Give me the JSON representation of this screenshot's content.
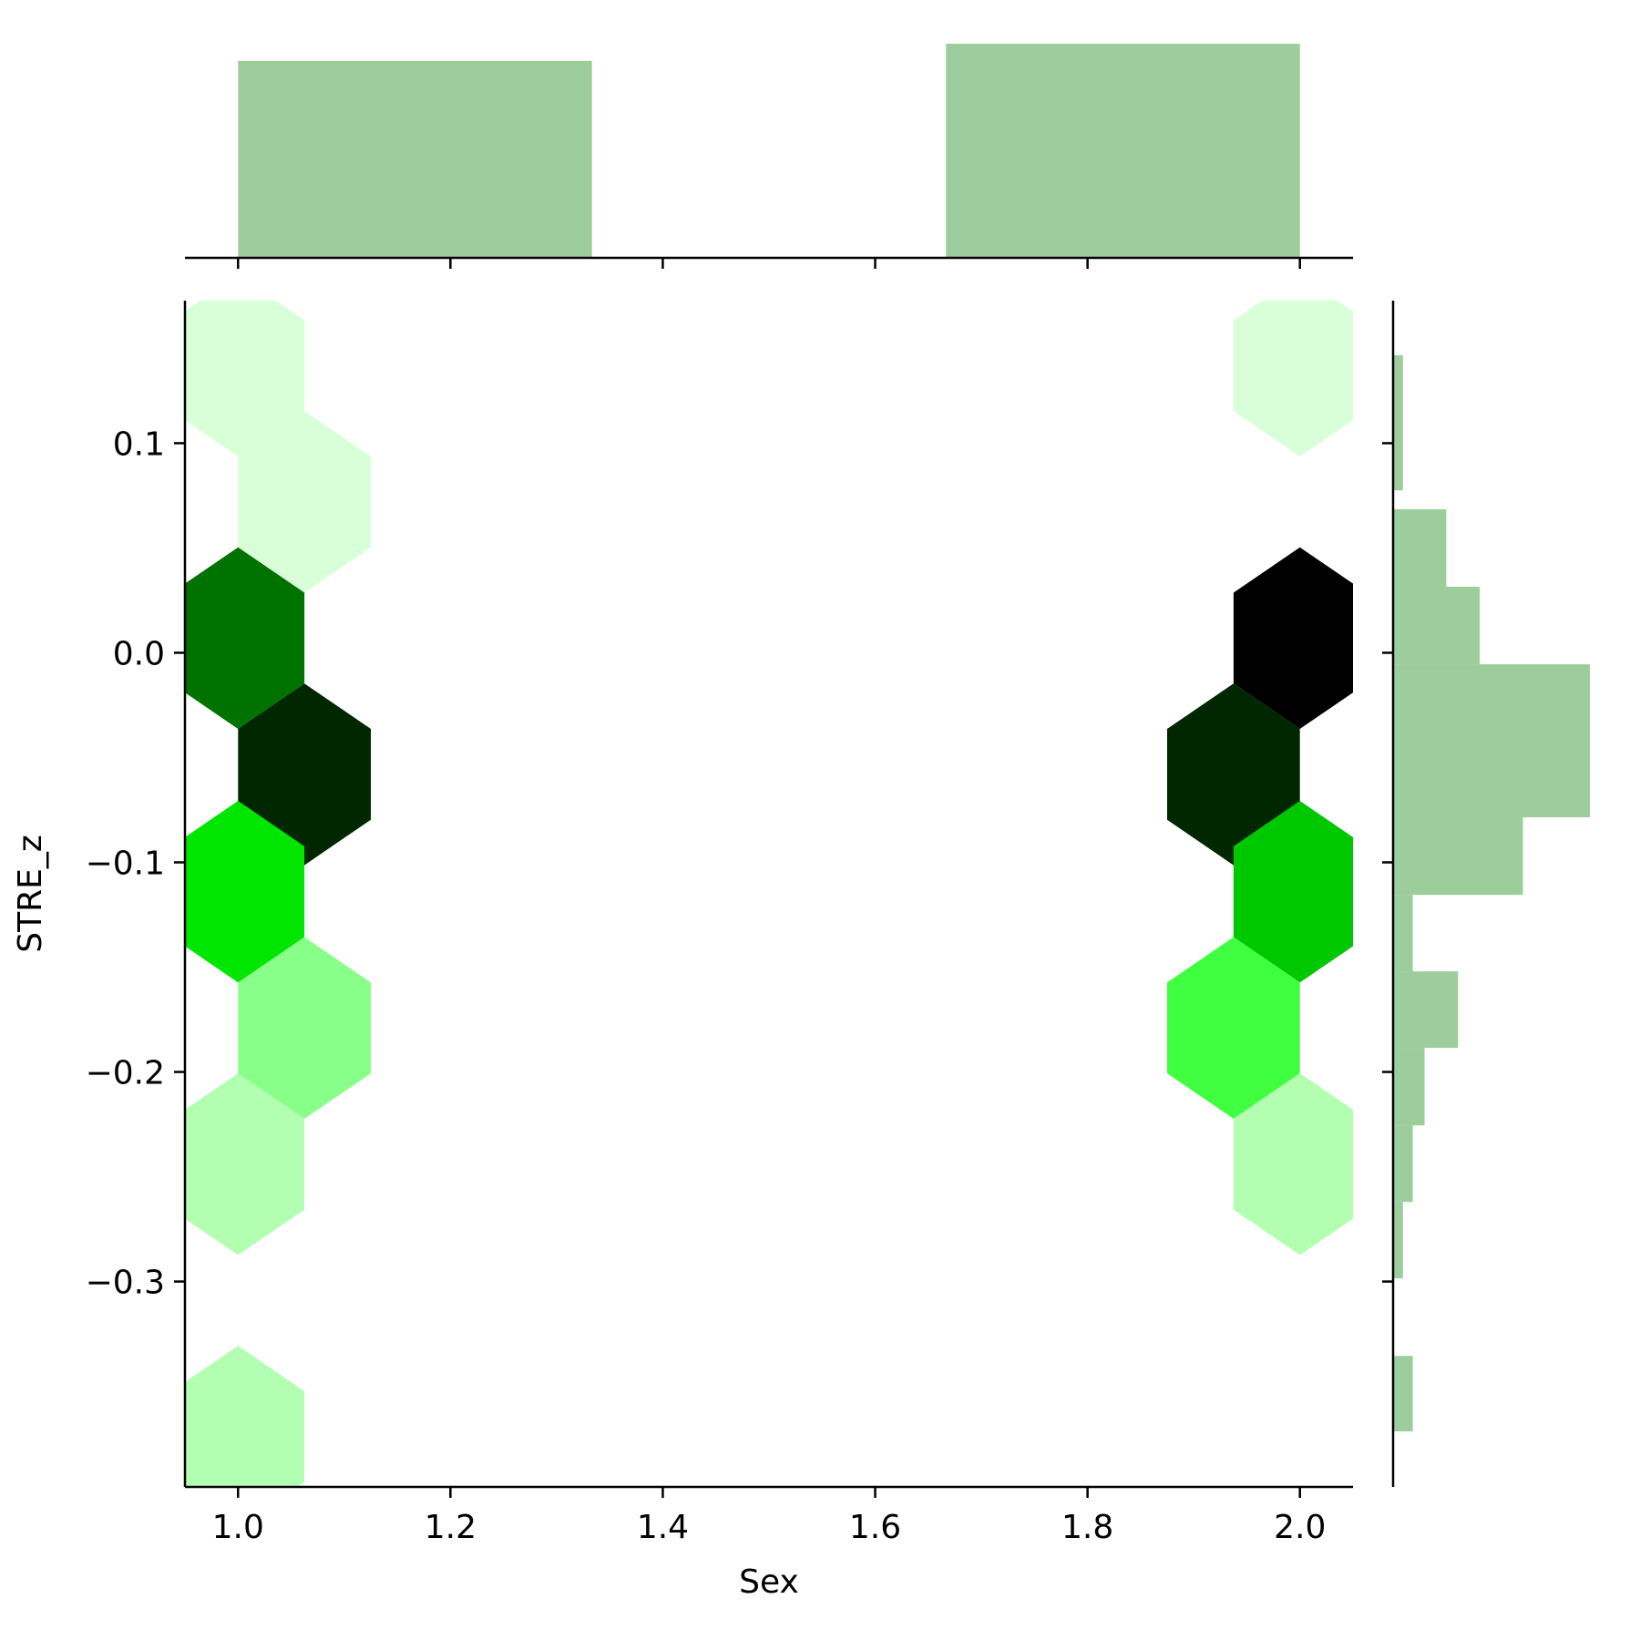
{
  "chart_data": {
    "type": "hexbin",
    "xlabel": "Sex",
    "ylabel": "STRE_z",
    "xlim": [
      0.95,
      2.05
    ],
    "ylim": [
      -0.398,
      0.168
    ],
    "xticks": [
      1.0,
      1.2,
      1.4,
      1.6,
      1.8,
      2.0
    ],
    "xtick_labels": [
      "1.0",
      "1.2",
      "1.4",
      "1.6",
      "1.8",
      "2.0"
    ],
    "yticks": [
      -0.3,
      -0.2,
      -0.1,
      0.0,
      0.1
    ],
    "ytick_labels": [
      "−0.3",
      "−0.2",
      "−0.1",
      "0.0",
      "0.1"
    ],
    "colormap": {
      "low": "#d8ffd8",
      "mid": "#00e600",
      "high": "#000000"
    },
    "hexbins": [
      {
        "x": 1.0,
        "y": 0.137,
        "level": 0.1,
        "color": "#d8ffd8"
      },
      {
        "x": 1.0625,
        "y": 0.072,
        "level": 0.1,
        "color": "#d8ffd8"
      },
      {
        "x": 1.0,
        "y": 0.007,
        "level": 0.75,
        "color": "#007200"
      },
      {
        "x": 1.0625,
        "y": -0.058,
        "level": 0.93,
        "color": "#002700"
      },
      {
        "x": 1.0,
        "y": -0.114,
        "level": 0.5,
        "color": "#00e600"
      },
      {
        "x": 1.0625,
        "y": -0.179,
        "level": 0.3,
        "color": "#88ff88"
      },
      {
        "x": 1.0,
        "y": -0.244,
        "level": 0.2,
        "color": "#b2ffb2"
      },
      {
        "x": 1.0,
        "y": -0.374,
        "level": 0.2,
        "color": "#b2ffb2"
      },
      {
        "x": 2.0,
        "y": 0.137,
        "level": 0.1,
        "color": "#d8ffd8"
      },
      {
        "x": 2.0,
        "y": 0.007,
        "level": 1.0,
        "color": "#000000"
      },
      {
        "x": 1.9375,
        "y": -0.058,
        "level": 0.93,
        "color": "#002700"
      },
      {
        "x": 2.0,
        "y": -0.114,
        "level": 0.6,
        "color": "#00c800"
      },
      {
        "x": 1.9375,
        "y": -0.179,
        "level": 0.4,
        "color": "#40ff40"
      },
      {
        "x": 2.0,
        "y": -0.244,
        "level": 0.2,
        "color": "#b2ffb2"
      }
    ],
    "marginal_x": {
      "color": "#9ccd9a",
      "bins": [
        {
          "x0": 1.0,
          "x1": 1.3333,
          "height": 0.92
        },
        {
          "x0": 1.6667,
          "x1": 2.0,
          "height": 1.0
        }
      ]
    },
    "marginal_y": {
      "color": "#9ccd9a",
      "bins": [
        {
          "y0": 0.0775,
          "y1": 0.142,
          "width": 0.05
        },
        {
          "y0": 0.0315,
          "y1": 0.0685,
          "width": 0.27
        },
        {
          "y0": -0.0055,
          "y1": 0.0315,
          "width": 0.44
        },
        {
          "y0": -0.0785,
          "y1": -0.0055,
          "width": 1.0
        },
        {
          "y0": -0.1155,
          "y1": -0.0785,
          "width": 0.66
        },
        {
          "y0": -0.152,
          "y1": -0.1155,
          "width": 0.1
        },
        {
          "y0": -0.1885,
          "y1": -0.152,
          "width": 0.33
        },
        {
          "y0": -0.2255,
          "y1": -0.1885,
          "width": 0.16
        },
        {
          "y0": -0.262,
          "y1": -0.2255,
          "width": 0.1
        },
        {
          "y0": -0.2985,
          "y1": -0.262,
          "width": 0.05
        },
        {
          "y0": -0.3715,
          "y1": -0.3355,
          "width": 0.1
        }
      ]
    }
  }
}
